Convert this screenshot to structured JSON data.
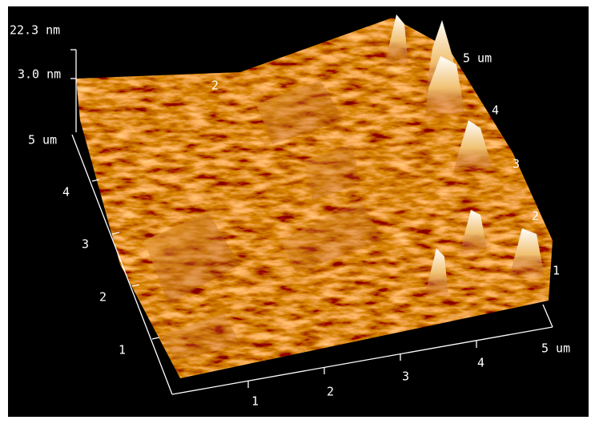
{
  "z_axis": {
    "max": "22.3 nm",
    "mid": "3.0 nm"
  },
  "left_axis": {
    "ticks": [
      "1",
      "2",
      "3",
      "4"
    ],
    "end": "5 um"
  },
  "bottom_axis": {
    "ticks": [
      "1",
      "2",
      "3",
      "4"
    ],
    "end": "5 um"
  },
  "right_axis": {
    "ticks": [
      "1",
      "2",
      "3",
      "4"
    ],
    "end": "5 um"
  },
  "back_axis": {
    "ticks": [
      "2"
    ]
  }
}
